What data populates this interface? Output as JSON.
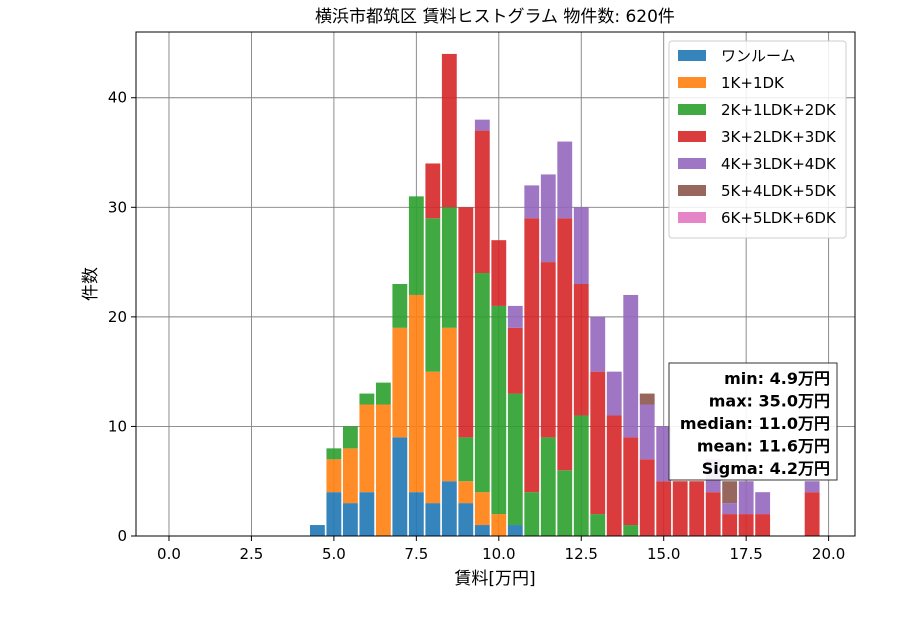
{
  "chart_data": {
    "type": "bar",
    "stacked": true,
    "title": "横浜市都筑区 賃料ヒストグラム 物件数: 620件",
    "xlabel": "賃料[万円]",
    "ylabel": "件数",
    "xlim": [
      -1.0,
      20.8
    ],
    "ylim": [
      0,
      46
    ],
    "bin_width": 0.5,
    "grid": true,
    "legend_position": "top-right",
    "x_ticks": [
      {
        "value": 0,
        "label": "0.0"
      },
      {
        "value": 2.5,
        "label": "2.5"
      },
      {
        "value": 5,
        "label": "5.0"
      },
      {
        "value": 7.5,
        "label": "7.5"
      },
      {
        "value": 10,
        "label": "10.0"
      },
      {
        "value": 12.5,
        "label": "12.5"
      },
      {
        "value": 15,
        "label": "15.0"
      },
      {
        "value": 17.5,
        "label": "17.5"
      },
      {
        "value": 20,
        "label": "20.0"
      }
    ],
    "y_ticks": [
      {
        "value": 0,
        "label": "0"
      },
      {
        "value": 10,
        "label": "10"
      },
      {
        "value": 20,
        "label": "20"
      },
      {
        "value": 30,
        "label": "30"
      },
      {
        "value": 40,
        "label": "40"
      }
    ],
    "x": [
      4.5,
      5.0,
      5.5,
      6.0,
      6.5,
      7.0,
      7.5,
      8.0,
      8.5,
      9.0,
      9.5,
      10.0,
      10.5,
      11.0,
      11.5,
      12.0,
      12.5,
      13.0,
      13.5,
      14.0,
      14.5,
      15.0,
      15.5,
      16.0,
      16.5,
      17.0,
      17.5,
      18.0,
      18.5,
      19.0,
      19.5
    ],
    "series": [
      {
        "name": "ワンルーム",
        "color": "#1f77b4",
        "values": [
          1,
          4,
          3,
          4,
          0,
          9,
          4,
          3,
          5,
          3,
          1,
          0,
          1,
          0,
          0,
          0,
          0,
          0,
          0,
          0,
          0,
          0,
          0,
          0,
          0,
          0,
          0,
          0,
          0,
          0,
          0
        ]
      },
      {
        "name": "1K+1DK",
        "color": "#ff7f0e",
        "values": [
          0,
          3,
          5,
          8,
          12,
          10,
          18,
          12,
          14,
          2,
          3,
          2,
          0,
          0,
          0,
          0,
          0,
          0,
          0,
          0,
          0,
          0,
          0,
          0,
          0,
          0,
          0,
          0,
          0,
          0,
          0
        ]
      },
      {
        "name": "2K+1LDK+2DK",
        "color": "#2ca02c",
        "values": [
          0,
          1,
          2,
          1,
          2,
          4,
          9,
          14,
          11,
          4,
          20,
          19,
          12,
          4,
          9,
          6,
          11,
          2,
          0,
          1,
          0,
          0,
          0,
          0,
          0,
          0,
          0,
          0,
          0,
          0,
          0
        ]
      },
      {
        "name": "3K+2LDK+3DK",
        "color": "#d62728",
        "values": [
          0,
          0,
          0,
          0,
          0,
          0,
          0,
          5,
          14,
          21,
          13,
          6,
          6,
          25,
          16,
          23,
          12,
          13,
          11,
          8,
          7,
          5,
          5,
          5,
          4,
          2,
          2,
          2,
          0,
          0,
          4
        ]
      },
      {
        "name": "4K+3LDK+4DK",
        "color": "#9467bd",
        "values": [
          0,
          0,
          0,
          0,
          0,
          0,
          0,
          0,
          0,
          0,
          1,
          0,
          2,
          3,
          8,
          7,
          7,
          5,
          4,
          13,
          5,
          5,
          0,
          0,
          3,
          1,
          3,
          2,
          0,
          0,
          1
        ]
      },
      {
        "name": "5K+4LDK+5DK",
        "color": "#8c564b",
        "values": [
          0,
          0,
          0,
          0,
          0,
          0,
          0,
          0,
          0,
          0,
          0,
          0,
          0,
          0,
          0,
          0,
          0,
          0,
          0,
          0,
          1,
          0,
          0,
          0,
          0,
          2,
          0,
          0,
          0,
          0,
          0
        ]
      },
      {
        "name": "6K+5LDK+6DK",
        "color": "#e377c2",
        "values": [
          0,
          0,
          0,
          0,
          0,
          0,
          0,
          0,
          0,
          0,
          0,
          0,
          0,
          0,
          0,
          0,
          0,
          0,
          0,
          0,
          0,
          0,
          0,
          0,
          0,
          0,
          0,
          0,
          0,
          0,
          0
        ]
      }
    ],
    "stats": [
      "min: 4.9万円",
      "max: 35.0万円",
      "median: 11.0万円",
      "mean: 11.6万円",
      "Sigma: 4.2万円"
    ]
  }
}
